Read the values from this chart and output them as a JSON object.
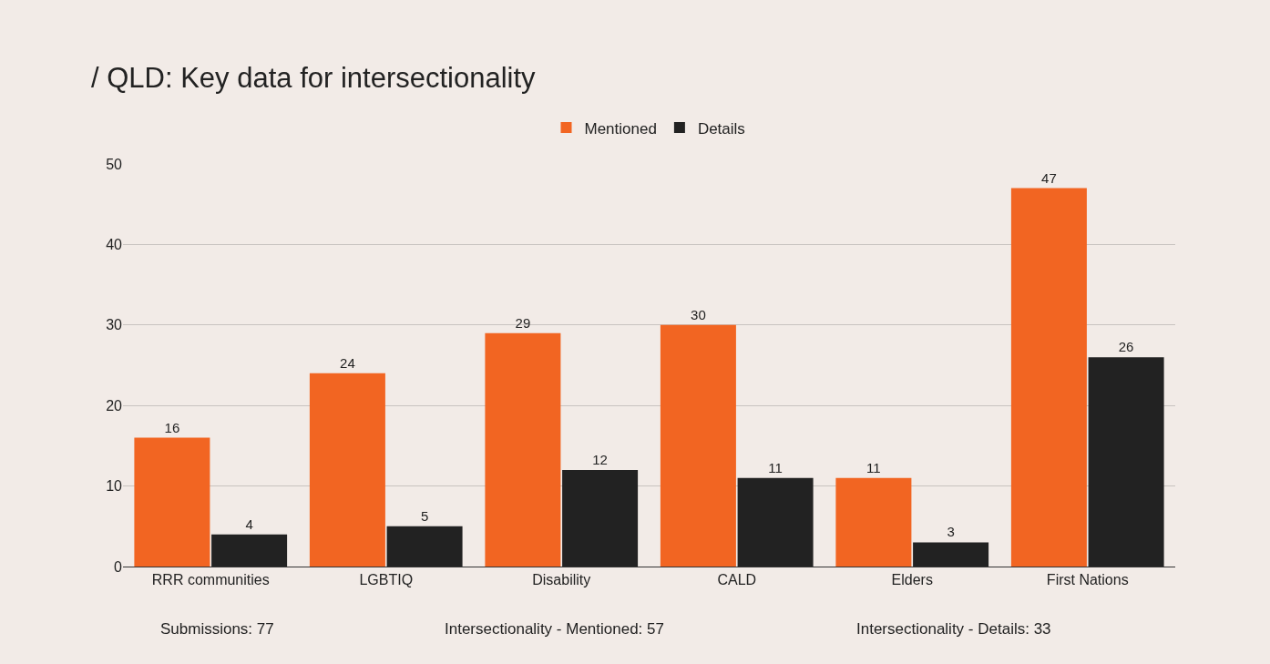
{
  "chart_data": {
    "type": "bar",
    "title": "/ QLD: Key data for intersectionality",
    "categories": [
      "RRR communities",
      "LGBTIQ",
      "Disability",
      "CALD",
      "Elders",
      "First Nations"
    ],
    "series": [
      {
        "name": "Mentioned",
        "color": "#f26522",
        "values": [
          16,
          24,
          29,
          30,
          11,
          47
        ]
      },
      {
        "name": "Details",
        "color": "#222222",
        "values": [
          4,
          5,
          12,
          11,
          3,
          26
        ]
      }
    ],
    "ylim": [
      0,
      50
    ],
    "yticks": [
      0,
      10,
      20,
      30,
      40,
      50
    ],
    "grid": "y",
    "legend": "top",
    "data_labels": true,
    "annotations": [
      "Submissions: 77",
      "Intersectionality - Mentioned: 57",
      "Intersectionality - Details: 33"
    ]
  }
}
